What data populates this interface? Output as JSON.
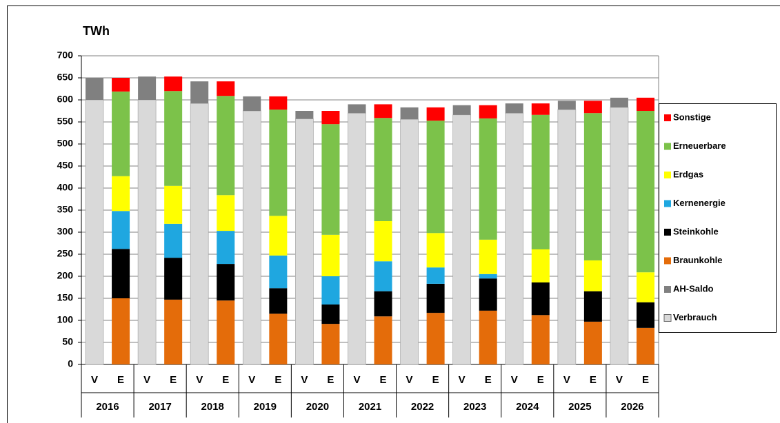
{
  "chart_data": {
    "type": "stacked_bar",
    "title": "TWh",
    "categories": [
      "V",
      "E",
      "V",
      "E",
      "V",
      "E",
      "V",
      "E",
      "V",
      "E",
      "V",
      "E",
      "V",
      "E",
      "V",
      "E",
      "V",
      "E",
      "V",
      "E",
      "V",
      "E"
    ],
    "groups": [
      "2016",
      "2017",
      "2018",
      "2019",
      "2020",
      "2021",
      "2022",
      "2023",
      "2024",
      "2025",
      "2026"
    ],
    "series": [
      {
        "name": "Verbrauch",
        "color": "#d9d9d9",
        "values": [
          600,
          null,
          600,
          null,
          592,
          null,
          575,
          null,
          557,
          null,
          570,
          null,
          556,
          null,
          566,
          null,
          570,
          null,
          578,
          null,
          583,
          null
        ]
      },
      {
        "name": "AH-Saldo",
        "color": "#808080",
        "values": [
          50,
          null,
          53,
          null,
          50,
          null,
          33,
          null,
          18,
          null,
          20,
          null,
          27,
          null,
          22,
          null,
          22,
          null,
          20,
          null,
          22,
          null
        ]
      },
      {
        "name": "Braunkohle",
        "color": "#e46c0a",
        "values": [
          null,
          150,
          null,
          147,
          null,
          145,
          null,
          115,
          null,
          92,
          null,
          109,
          null,
          117,
          null,
          122,
          null,
          112,
          null,
          97,
          null,
          83
        ]
      },
      {
        "name": "Steinkohle",
        "color": "#000000",
        "values": [
          null,
          112,
          null,
          95,
          null,
          83,
          null,
          58,
          null,
          44,
          null,
          57,
          null,
          66,
          null,
          73,
          null,
          74,
          null,
          69,
          null,
          58
        ]
      },
      {
        "name": "Kernenergie",
        "color": "#1fa7e0",
        "values": [
          null,
          86,
          null,
          77,
          null,
          75,
          null,
          74,
          null,
          64,
          null,
          68,
          null,
          37,
          null,
          10,
          null,
          null,
          null,
          null,
          null,
          null
        ]
      },
      {
        "name": "Erdgas",
        "color": "#ffff00",
        "values": [
          null,
          79,
          null,
          86,
          null,
          81,
          null,
          90,
          null,
          94,
          null,
          91,
          null,
          78,
          null,
          78,
          null,
          75,
          null,
          70,
          null,
          68
        ]
      },
      {
        "name": "Erneuerbare",
        "color": "#7cc24a",
        "values": [
          null,
          192,
          null,
          215,
          null,
          225,
          null,
          241,
          null,
          251,
          null,
          234,
          null,
          255,
          null,
          275,
          null,
          305,
          null,
          334,
          null,
          366
        ]
      },
      {
        "name": "Sonstige",
        "color": "#ff0000",
        "values": [
          null,
          31,
          null,
          33,
          null,
          33,
          null,
          30,
          null,
          30,
          null,
          31,
          null,
          30,
          null,
          30,
          null,
          26,
          null,
          28,
          null,
          30
        ]
      }
    ],
    "ylim": [
      0,
      700
    ],
    "yticks": [
      0,
      50,
      100,
      150,
      200,
      250,
      300,
      350,
      400,
      450,
      500,
      550,
      600,
      650,
      700
    ],
    "grid": true
  }
}
